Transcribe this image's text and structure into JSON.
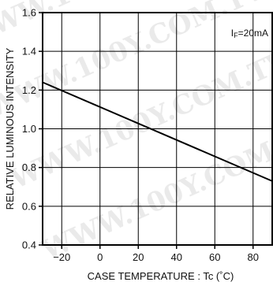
{
  "watermark": "WWW.100Y.COM.TW",
  "chart_data": {
    "type": "line",
    "xlabel": "CASE  TEMPERATURE : Tc (˚C)",
    "ylabel": "RELATIVE  LUMINOUS  INTENSITY",
    "annotation": {
      "main": "I",
      "sub": "F",
      "rest": "=20mA"
    },
    "xlim": [
      -30,
      90
    ],
    "ylim": [
      0.4,
      1.6
    ],
    "x_ticks": [
      -20,
      0,
      20,
      40,
      60,
      80
    ],
    "x_tick_labels": [
      "−20",
      "0",
      "20",
      "40",
      "60",
      "80"
    ],
    "y_ticks": [
      0.4,
      0.6,
      0.8,
      1.0,
      1.2,
      1.4,
      1.6
    ],
    "y_tick_labels": [
      "0.4",
      "0.6",
      "0.8",
      "1.0",
      "1.2",
      "1.4",
      "1.6"
    ],
    "grid": true,
    "series": [
      {
        "x": [
          -30,
          90
        ],
        "y": [
          1.24,
          0.73
        ]
      }
    ]
  }
}
